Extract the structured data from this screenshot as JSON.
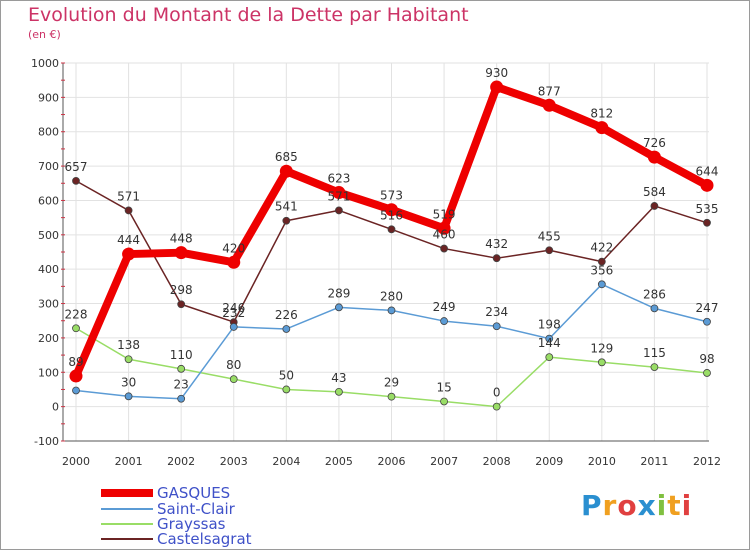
{
  "header": {
    "title": "Evolution du Montant de la Dette par Habitant",
    "subtitle": "(en €)"
  },
  "logo": {
    "text": "Proxiti"
  },
  "chart_data": {
    "type": "line",
    "title": "Evolution du Montant de la Dette par Habitant",
    "subtitle": "(en €)",
    "xlabel": "",
    "ylabel": "",
    "x": [
      "2000",
      "2001",
      "2002",
      "2003",
      "2004",
      "2005",
      "2006",
      "2007",
      "2008",
      "2009",
      "2010",
      "2011",
      "2012"
    ],
    "ylim": [
      -100,
      1000
    ],
    "yticks": [
      "-100",
      "0",
      "100",
      "200",
      "300",
      "400",
      "500",
      "600",
      "700",
      "800",
      "900",
      "1000"
    ],
    "grid": true,
    "legend_position": "bottom-left",
    "series": [
      {
        "name": "GASQUES",
        "color": "#ee0000",
        "values": [
          89,
          444,
          448,
          420,
          685,
          623,
          573,
          519,
          930,
          877,
          812,
          726,
          644
        ],
        "labels": [
          "89",
          "444",
          "448",
          "420",
          "685",
          "623",
          "573",
          "519",
          "930",
          "877",
          "812",
          "726",
          "644"
        ]
      },
      {
        "name": "Saint-Clair",
        "color": "#5b9bd5",
        "values": [
          47,
          30,
          23,
          232,
          226,
          289,
          280,
          249,
          234,
          198,
          356,
          286,
          247
        ],
        "labels": [
          "",
          "30",
          "23",
          "232",
          "226",
          "289",
          "280",
          "249",
          "234",
          "198",
          "356",
          "286",
          "247"
        ]
      },
      {
        "name": "Grayssas",
        "color": "#99dd66",
        "values": [
          228,
          138,
          110,
          80,
          50,
          43,
          29,
          15,
          0,
          144,
          129,
          115,
          98
        ],
        "labels": [
          "228",
          "138",
          "110",
          "80",
          "50",
          "43",
          "29",
          "15",
          "0",
          "144",
          "129",
          "115",
          "98"
        ]
      },
      {
        "name": "Castelsagrat",
        "color": "#6b2424",
        "values": [
          657,
          571,
          298,
          246,
          541,
          571,
          516,
          460,
          432,
          455,
          422,
          584,
          535
        ],
        "labels": [
          "657",
          "571",
          "298",
          "246",
          "541",
          "571",
          "516",
          "460",
          "432",
          "455",
          "422",
          "584",
          "535"
        ]
      }
    ]
  }
}
